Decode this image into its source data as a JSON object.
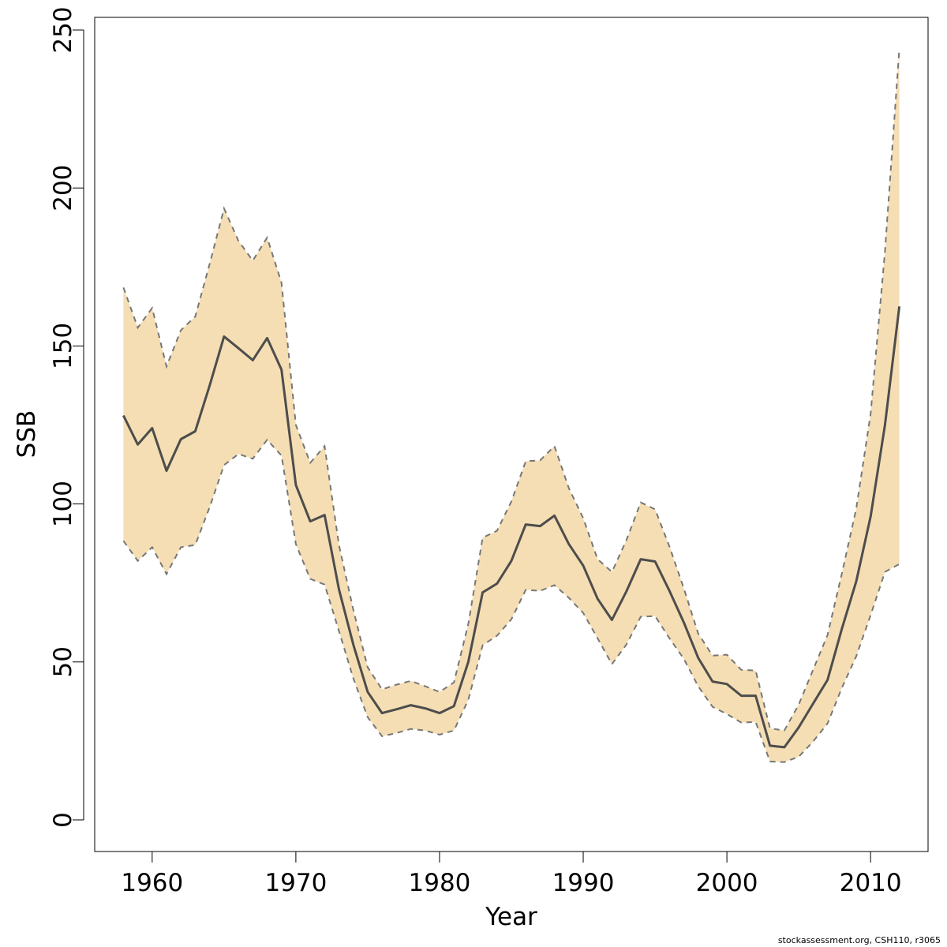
{
  "chart_data": {
    "type": "area",
    "xlabel": "Year",
    "ylabel": "SSB",
    "xlim": [
      1956,
      2014
    ],
    "ylim": [
      -10,
      254
    ],
    "x_ticks": [
      1960,
      1970,
      1980,
      1990,
      2000,
      2010
    ],
    "y_ticks": [
      0,
      50,
      100,
      150,
      200,
      250
    ],
    "grid": false,
    "x": [
      1958,
      1959,
      1960,
      1961,
      1962,
      1963,
      1964,
      1965,
      1966,
      1967,
      1968,
      1969,
      1970,
      1971,
      1972,
      1973,
      1974,
      1975,
      1976,
      1977,
      1978,
      1979,
      1980,
      1981,
      1982,
      1983,
      1984,
      1985,
      1986,
      1987,
      1988,
      1989,
      1990,
      1991,
      1992,
      1993,
      1994,
      1995,
      1996,
      1997,
      1998,
      1999,
      2000,
      2001,
      2002,
      2003,
      2004,
      2005,
      2006,
      2007,
      2008,
      2009,
      2010,
      2011,
      2012
    ],
    "series": [
      {
        "role": "estimate",
        "values": [
          128,
          118.8,
          124,
          110.5,
          120.5,
          123,
          137.5,
          153,
          149.3,
          145.5,
          152.5,
          142.5,
          106,
          94.5,
          96.5,
          73,
          55.5,
          40.5,
          33.8,
          35,
          36.3,
          35.3,
          33.8,
          36,
          50,
          72,
          74.8,
          82,
          93.5,
          93,
          96.3,
          87.3,
          80.5,
          70,
          63.3,
          72.3,
          82.5,
          81.8,
          72.5,
          62.5,
          51.3,
          43.8,
          43,
          39.3,
          39.3,
          23.5,
          23,
          29.3,
          36.8,
          44.3,
          60.5,
          75.5,
          96,
          125,
          162.5
        ]
      },
      {
        "role": "upper",
        "values": [
          168.5,
          155.8,
          162,
          143.5,
          155,
          159.3,
          176,
          193.5,
          183.3,
          177,
          184.3,
          170,
          125,
          113,
          118.3,
          87,
          66.5,
          48.3,
          41.3,
          42.8,
          44,
          42.3,
          40.5,
          43.5,
          62,
          89.3,
          91.5,
          100.8,
          113.5,
          113.8,
          118.3,
          105,
          95.5,
          82.5,
          78.5,
          88.5,
          100.5,
          98.3,
          86.5,
          73.3,
          59,
          52,
          52.3,
          47.5,
          47.3,
          29,
          28.3,
          36.5,
          47.5,
          58.5,
          78,
          98.5,
          128.5,
          180,
          244
        ]
      },
      {
        "role": "lower",
        "values": [
          88.3,
          82,
          86.3,
          77.8,
          86.3,
          87,
          99,
          112.3,
          115.8,
          114.3,
          120.3,
          115.3,
          87.3,
          76.3,
          74.5,
          59.8,
          44.8,
          32.5,
          26.5,
          27.5,
          28.8,
          28.3,
          27,
          28.3,
          38,
          55.3,
          58.3,
          63.5,
          72.8,
          72.5,
          74.3,
          70.3,
          65.5,
          57.5,
          49.3,
          55.5,
          64.3,
          64.5,
          57.5,
          51,
          42.3,
          35.8,
          33.5,
          30.8,
          31,
          18.5,
          18.3,
          20,
          24.8,
          30.5,
          41.8,
          51.8,
          64.8,
          78.5,
          81
        ]
      }
    ],
    "colors": {
      "band_fill": "#f5deb3",
      "estimate_line": "#4d4d4d",
      "bound_line": "#777777"
    }
  },
  "footer": {
    "credit": "stockassessment.org, CSH110, r3065"
  }
}
